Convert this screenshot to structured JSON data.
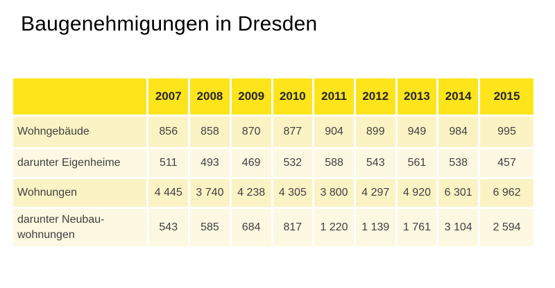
{
  "title": "Baugenehmigungen in Dresden",
  "colors": {
    "page_bg": "#ffffff",
    "header_bg": "#fde41b",
    "row_odd_bg": "#fcf3c5",
    "row_even_bg": "#fdf8e1",
    "header_text": "#262626",
    "cell_text": "#3f3f3f",
    "title_color": "#000000"
  },
  "table": {
    "years": [
      "2007",
      "2008",
      "2009",
      "2010",
      "2011",
      "2012",
      "2013",
      "2014",
      "2015"
    ],
    "rows": [
      {
        "label": "Wohngebäude",
        "values": [
          "856",
          "858",
          "870",
          "877",
          "904",
          "899",
          "949",
          "984",
          "995"
        ]
      },
      {
        "label": "darunter Eigenheime",
        "values": [
          "511",
          "493",
          "469",
          "532",
          "588",
          "543",
          "561",
          "538",
          "457"
        ]
      },
      {
        "label": "Wohnungen",
        "values": [
          "4 445",
          "3 740",
          "4 238",
          "4 305",
          "3 800",
          "4 297",
          "4 920",
          "6 301",
          "6 962"
        ]
      },
      {
        "label": "darunter Neubau-\nwohnungen",
        "values": [
          "543",
          "585",
          "684",
          "817",
          "1 220",
          "1 139",
          "1 761",
          "3 104",
          "2 594"
        ]
      }
    ]
  },
  "chart_data": {
    "type": "table",
    "title": "Baugenehmigungen in Dresden",
    "categories": [
      "2007",
      "2008",
      "2009",
      "2010",
      "2011",
      "2012",
      "2013",
      "2014",
      "2015"
    ],
    "series": [
      {
        "name": "Wohngebäude",
        "values": [
          856,
          858,
          870,
          877,
          904,
          899,
          949,
          984,
          995
        ]
      },
      {
        "name": "darunter Eigenheime",
        "values": [
          511,
          493,
          469,
          532,
          588,
          543,
          561,
          538,
          457
        ]
      },
      {
        "name": "Wohnungen",
        "values": [
          4445,
          3740,
          4238,
          4305,
          3800,
          4297,
          4920,
          6301,
          6962
        ]
      },
      {
        "name": "darunter Neubauwohnungen",
        "values": [
          543,
          585,
          684,
          817,
          1220,
          1139,
          1761,
          3104,
          2594
        ]
      }
    ],
    "layout": {
      "header_position": "top",
      "grid": false,
      "legend": "none"
    }
  }
}
